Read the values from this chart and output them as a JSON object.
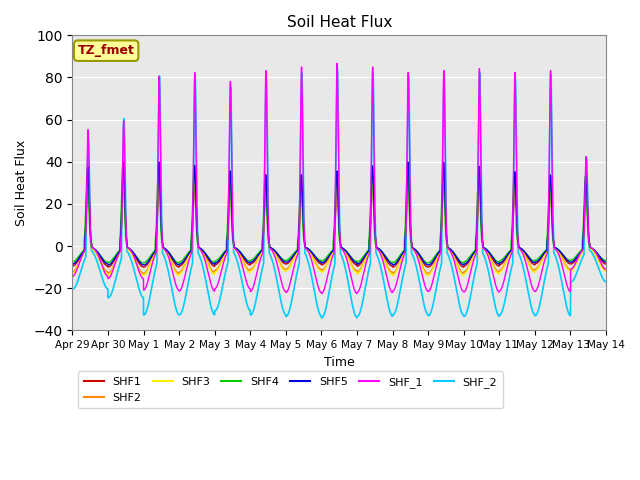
{
  "title": "Soil Heat Flux",
  "xlabel": "Time",
  "ylabel": "Soil Heat Flux",
  "ylim": [
    -40,
    100
  ],
  "yticks": [
    -40,
    -20,
    0,
    20,
    40,
    60,
    80,
    100
  ],
  "annotation_text": "TZ_fmet",
  "annotation_bg": "#ffff99",
  "annotation_border": "#999900",
  "annotation_text_color": "#990000",
  "series": {
    "SHF1": {
      "color": "#cc0000",
      "lw": 1.0
    },
    "SHF2": {
      "color": "#ff8800",
      "lw": 1.0
    },
    "SHF3": {
      "color": "#ffee00",
      "lw": 1.0
    },
    "SHF4": {
      "color": "#00cc00",
      "lw": 1.0
    },
    "SHF5": {
      "color": "#0000dd",
      "lw": 1.0
    },
    "SHF_1": {
      "color": "#ff00ff",
      "lw": 1.0
    },
    "SHF_2": {
      "color": "#00ccff",
      "lw": 1.2
    }
  },
  "n_days": 15,
  "points_per_day": 288,
  "background_color": "#ffffff",
  "plot_bg": "#e8e8e8",
  "grid_color": "#ffffff",
  "figsize": [
    6.4,
    4.8
  ],
  "dpi": 100
}
